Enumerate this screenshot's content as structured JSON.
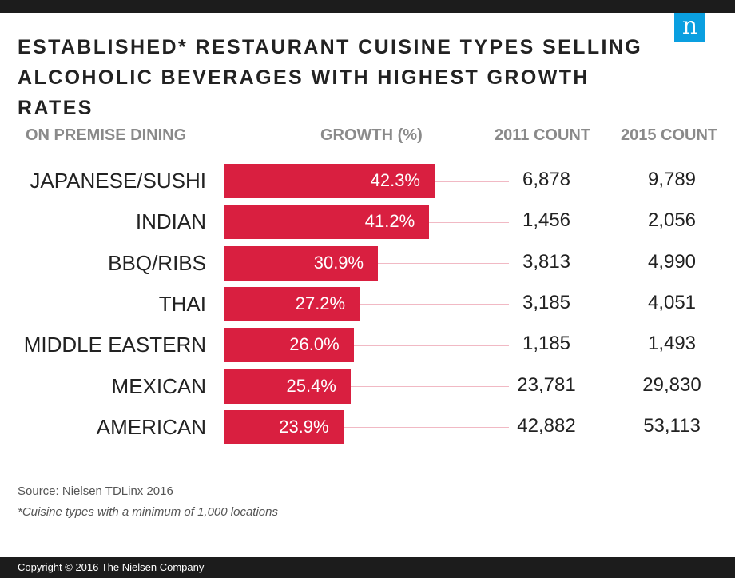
{
  "brand": {
    "logo_text": "n",
    "logo_color": "#0a9fe0"
  },
  "title_lines": [
    "ESTABLISHED* RESTAURANT CUISINE TYPES SELLING",
    "ALCOHOLIC BEVERAGES WITH HIGHEST GROWTH RATES"
  ],
  "headers": {
    "category": "ON PREMISE DINING",
    "growth": "GROWTH (%)",
    "count_2011": "2011 COUNT",
    "count_2015": "2015 COUNT"
  },
  "chart_data": {
    "type": "bar",
    "orientation": "horizontal",
    "bar_color": "#d91f40",
    "categories": [
      "JAPANESE/SUSHI",
      "INDIAN",
      "BBQ/RIBS",
      "THAI",
      "MIDDLE EASTERN",
      "MEXICAN",
      "AMERICAN"
    ],
    "values": [
      42.3,
      41.2,
      30.9,
      27.2,
      26.0,
      25.4,
      23.9
    ],
    "value_labels": [
      "42.3%",
      "41.2%",
      "30.9%",
      "27.2%",
      "26.0%",
      "25.4%",
      "23.9%"
    ],
    "count_2011": [
      "6,878",
      "1,456",
      "3,813",
      "3,185",
      "1,185",
      "23,781",
      "42,882"
    ],
    "count_2015": [
      "9,789",
      "2,056",
      "4,990",
      "4,051",
      "1,493",
      "29,830",
      "53,113"
    ],
    "xlim": [
      0,
      42.3
    ]
  },
  "source": "Source: Nielsen TDLinx 2016",
  "footnote": "*Cuisine types with a minimum of 1,000 locations",
  "copyright": "Copyright © 2016 The Nielsen Company"
}
